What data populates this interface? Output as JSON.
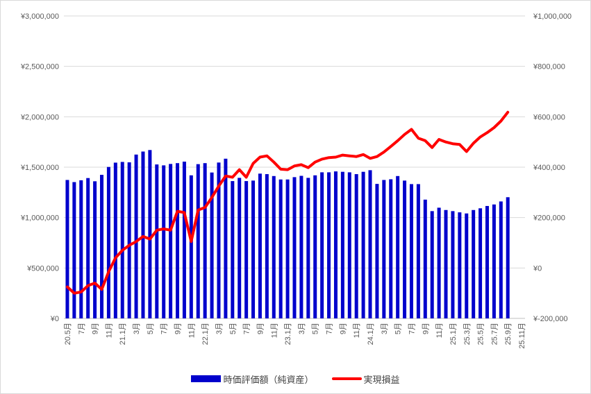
{
  "chart_data": {
    "type": "combo",
    "title": "",
    "x_slots": 67,
    "x": [
      "2020-05",
      "2020-06",
      "2020-07",
      "2020-08",
      "2020-09",
      "2020-10",
      "2020-11",
      "2020-12",
      "2021-01",
      "2021-02",
      "2021-03",
      "2021-04",
      "2021-05",
      "2021-06",
      "2021-07",
      "2021-08",
      "2021-09",
      "2021-10",
      "2021-11",
      "2021-12",
      "2022-01",
      "2022-02",
      "2022-03",
      "2022-04",
      "2022-05",
      "2022-06",
      "2022-07",
      "2022-08",
      "2022-09",
      "2022-10",
      "2022-11",
      "2022-12",
      "2023-01",
      "2023-02",
      "2023-03",
      "2023-04",
      "2023-05",
      "2023-06",
      "2023-07",
      "2023-08",
      "2023-09",
      "2023-10",
      "2023-11",
      "2023-12",
      "2024-01",
      "2024-02",
      "2024-03",
      "2024-04",
      "2024-05",
      "2024-06",
      "2024-07",
      "2024-08",
      "2024-09",
      "2024-10",
      "2024-11",
      "2024-12",
      "2025-01",
      "2025-02",
      "2025-03",
      "2025-04",
      "2025-05",
      "2025-06",
      "2025-07",
      "2025-08",
      "2025-09"
    ],
    "x_tick_labels": [
      "20.5月",
      "7月",
      "9月",
      "11月",
      "21.1月",
      "3月",
      "5月",
      "7月",
      "9月",
      "11月",
      "22.1月",
      "3月",
      "5月",
      "7月",
      "9月",
      "11月",
      "23.1月",
      "3月",
      "5月",
      "7月",
      "9月",
      "11月",
      "24.1月",
      "3月",
      "5月",
      "7月",
      "9月",
      "11月",
      "25.1月",
      "25.3月",
      "25.5月",
      "25.7月",
      "25.9月",
      "25.11月"
    ],
    "series": [
      {
        "name": "時価評価額（純資産）",
        "type": "bar",
        "axis": "left",
        "color": "#0000cc",
        "values": [
          1373000,
          1352000,
          1370000,
          1392000,
          1360000,
          1424000,
          1502000,
          1545000,
          1552000,
          1548000,
          1625000,
          1655000,
          1670000,
          1527000,
          1518000,
          1532000,
          1540000,
          1555000,
          1419000,
          1530000,
          1540000,
          1447000,
          1546000,
          1584000,
          1362000,
          1394000,
          1362000,
          1367000,
          1436000,
          1431000,
          1412000,
          1378000,
          1378000,
          1401000,
          1414000,
          1394000,
          1419000,
          1449000,
          1449000,
          1458000,
          1454000,
          1449000,
          1431000,
          1454000,
          1470000,
          1334000,
          1373000,
          1380000,
          1412000,
          1367000,
          1332000,
          1332000,
          1178000,
          1064000,
          1098000,
          1075000,
          1064000,
          1052000,
          1041000,
          1075000,
          1092000,
          1115000,
          1130000,
          1160000,
          1202000
        ]
      },
      {
        "name": "実現損益",
        "type": "line",
        "axis": "right",
        "color": "#ff0000",
        "values": [
          -75000,
          -100000,
          -95000,
          -70000,
          -60000,
          -85000,
          -15000,
          40000,
          70000,
          90000,
          105000,
          125000,
          115000,
          150000,
          155000,
          150000,
          225000,
          220000,
          105000,
          230000,
          240000,
          280000,
          325000,
          365000,
          360000,
          390000,
          360000,
          415000,
          440000,
          445000,
          420000,
          392000,
          390000,
          405000,
          410000,
          398000,
          420000,
          432000,
          438000,
          440000,
          448000,
          445000,
          442000,
          450000,
          435000,
          442000,
          460000,
          482000,
          505000,
          530000,
          550000,
          515000,
          505000,
          478000,
          510000,
          500000,
          493000,
          490000,
          462000,
          495000,
          520000,
          537000,
          557000,
          583000,
          618000
        ]
      }
    ],
    "left_axis": {
      "min": 0,
      "max": 3000000,
      "tick_labels": [
        "¥3,000,000",
        "¥2,500,000",
        "¥2,000,000",
        "¥1,500,000",
        "¥1,000,000",
        "¥500,000",
        "¥0"
      ]
    },
    "right_axis": {
      "min": -200000,
      "max": 1000000,
      "tick_labels": [
        "¥1,000,000",
        "¥800,000",
        "¥600,000",
        "¥400,000",
        "¥200,000",
        "¥0",
        "¥-200,000"
      ],
      "negative_label_color": "#ff0000"
    },
    "grid": true,
    "gridline_color": "#d9d9d9",
    "axis_line_color": "#bfbfbf",
    "label_color": "#595959",
    "legend_position": "bottom"
  },
  "legend": {
    "items": [
      {
        "label": "時価評価額（純資産）",
        "color": "#0000cc",
        "swatch": "bar"
      },
      {
        "label": "実現損益",
        "color": "#ff0000",
        "swatch": "line"
      }
    ]
  }
}
